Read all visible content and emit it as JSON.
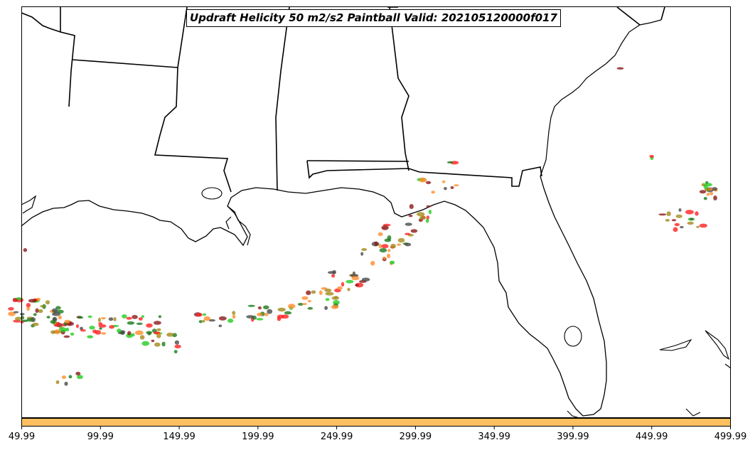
{
  "title": "Updraft Helicity 50 m2/s2 Paintball Valid: 202105120000f017",
  "colorbar": {
    "color": "#ffc061",
    "tick_labels": [
      "49.99",
      "99.99",
      "149.99",
      "199.99",
      "249.99",
      "299.99",
      "349.99",
      "399.99",
      "449.99",
      "499.99"
    ]
  },
  "paintball_colors": [
    "#ff2020",
    "#ff8c2a",
    "#22cc22",
    "#1a7a1a",
    "#8b1a1a",
    "#4a4a4a",
    "#a38a1a"
  ],
  "map": {
    "region": "Southeastern United States and Gulf of Mexico",
    "features": [
      "state boundaries",
      "coastlines",
      "Gulf of Mexico",
      "Florida peninsula",
      "Atlantic Ocean",
      "Bahamas"
    ]
  }
}
